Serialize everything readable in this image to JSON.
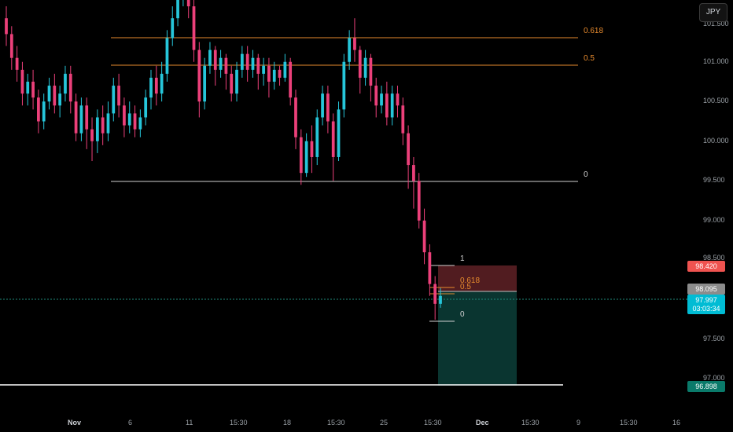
{
  "toolbar": {
    "currency_label": "JPY"
  },
  "colors": {
    "bull": "#26c6da",
    "bear": "#ec407a",
    "fib_orange": "#e68a2e",
    "fib_white": "#d0d0d0",
    "stop_zone": "#5a1f24",
    "target_zone": "#0b3b35",
    "red_tag": "#ef5350",
    "grey_tag": "#8c8c8c",
    "cyan_tag": "#00bcd4",
    "green_tag": "#0a7a6a"
  },
  "y_axis": {
    "ticks": [
      "101.000",
      "100.500",
      "100.000",
      "99.500",
      "99.000",
      "98.500",
      "97.500",
      "97.000"
    ],
    "partial_top_tick": "101.500"
  },
  "x_axis": {
    "ticks": [
      "Nov",
      "6",
      "11",
      "15:30",
      "18",
      "15:30",
      "25",
      "15:30",
      "Dec",
      "15:30",
      "9",
      "15:30",
      "16"
    ]
  },
  "fib_large": {
    "levels": [
      "0.618",
      "0.5",
      "0"
    ]
  },
  "fib_small": {
    "levels": [
      "1",
      "0.618",
      "0.5",
      "0"
    ]
  },
  "price_tags": {
    "stop": "98.420",
    "entry": "98.095",
    "current": "97.997",
    "countdown": "03:03:34",
    "target": "96.898"
  },
  "chart_data": {
    "type": "candlestick",
    "instrument_currency": "JPY",
    "y_range": [
      96.8,
      101.75
    ],
    "x_categories": [
      "Nov",
      "6",
      "11",
      "15:30",
      "18",
      "15:30",
      "25",
      "15:30",
      "Dec",
      "15:30",
      "9",
      "15:30",
      "16"
    ],
    "fib_retracement_1": {
      "levels": {
        "0.618": 101.2,
        "0.5": 100.95,
        "0": 99.48
      }
    },
    "fib_retracement_2": {
      "levels": {
        "1": 98.48,
        "0.618": 98.16,
        "0.5": 98.07,
        "0": 97.75
      }
    },
    "position": {
      "stop": 98.42,
      "entry": 98.095,
      "target": 96.898,
      "current": 97.997
    },
    "horizontal_line": 96.898,
    "candles": [
      [
        101.55,
        101.35,
        101.7,
        101.2
      ],
      [
        101.35,
        101.05,
        101.45,
        100.9
      ],
      [
        101.05,
        100.9,
        101.2,
        100.75
      ],
      [
        100.9,
        100.6,
        101.0,
        100.45
      ],
      [
        100.6,
        100.75,
        100.85,
        100.45
      ],
      [
        100.75,
        100.55,
        100.9,
        100.4
      ],
      [
        100.55,
        100.25,
        100.65,
        100.1
      ],
      [
        100.25,
        100.5,
        100.6,
        100.15
      ],
      [
        100.5,
        100.7,
        100.8,
        100.4
      ],
      [
        100.7,
        100.45,
        100.85,
        100.35
      ],
      [
        100.45,
        100.6,
        100.7,
        100.3
      ],
      [
        100.6,
        100.85,
        100.95,
        100.5
      ],
      [
        100.85,
        100.5,
        100.95,
        100.35
      ],
      [
        100.5,
        100.1,
        100.6,
        100.0
      ],
      [
        100.1,
        100.45,
        100.55,
        100.0
      ],
      [
        100.45,
        100.15,
        100.55,
        99.9
      ],
      [
        100.15,
        100.0,
        100.3,
        99.75
      ],
      [
        100.0,
        100.3,
        100.4,
        99.85
      ],
      [
        100.3,
        100.1,
        100.45,
        99.95
      ],
      [
        100.1,
        100.35,
        100.5,
        100.0
      ],
      [
        100.35,
        100.7,
        100.8,
        100.25
      ],
      [
        100.7,
        100.45,
        100.85,
        100.3
      ],
      [
        100.45,
        100.2,
        100.55,
        100.05
      ],
      [
        100.2,
        100.35,
        100.5,
        100.1
      ],
      [
        100.35,
        100.15,
        100.45,
        100.05
      ],
      [
        100.15,
        100.3,
        100.4,
        100.05
      ],
      [
        100.3,
        100.55,
        100.65,
        100.2
      ],
      [
        100.55,
        100.8,
        100.9,
        100.4
      ],
      [
        100.8,
        100.6,
        100.95,
        100.45
      ],
      [
        100.6,
        100.85,
        101.0,
        100.5
      ],
      [
        100.85,
        101.3,
        101.4,
        100.75
      ],
      [
        101.3,
        101.55,
        101.7,
        101.2
      ],
      [
        101.55,
        101.8,
        101.9,
        101.45
      ],
      [
        101.8,
        101.95,
        102.1,
        101.7
      ],
      [
        101.95,
        101.7,
        102.05,
        101.55
      ],
      [
        101.7,
        101.15,
        101.8,
        101.0
      ],
      [
        101.15,
        100.5,
        101.25,
        100.3
      ],
      [
        100.5,
        100.95,
        101.05,
        100.4
      ],
      [
        100.95,
        101.15,
        101.25,
        100.85
      ],
      [
        101.15,
        100.9,
        101.2,
        100.7
      ],
      [
        100.9,
        101.05,
        101.15,
        100.8
      ],
      [
        101.05,
        100.85,
        101.1,
        100.65
      ],
      [
        100.85,
        100.6,
        100.95,
        100.5
      ],
      [
        100.6,
        100.9,
        101.0,
        100.5
      ],
      [
        100.9,
        101.1,
        101.2,
        100.8
      ],
      [
        101.1,
        100.9,
        101.2,
        100.75
      ],
      [
        100.9,
        101.05,
        101.15,
        100.8
      ],
      [
        101.05,
        100.85,
        101.1,
        100.65
      ],
      [
        100.85,
        100.95,
        101.05,
        100.7
      ],
      [
        100.95,
        100.75,
        101.05,
        100.55
      ],
      [
        100.75,
        100.9,
        101.0,
        100.65
      ],
      [
        100.9,
        100.8,
        100.95,
        100.7
      ],
      [
        100.8,
        101.0,
        101.1,
        100.75
      ],
      [
        101.0,
        100.55,
        101.05,
        100.45
      ],
      [
        100.55,
        100.05,
        100.65,
        99.9
      ],
      [
        100.05,
        99.6,
        100.15,
        99.45
      ],
      [
        99.6,
        100.0,
        100.1,
        99.55
      ],
      [
        100.0,
        99.8,
        100.2,
        99.6
      ],
      [
        99.8,
        100.3,
        100.4,
        99.7
      ],
      [
        100.3,
        100.6,
        100.7,
        100.2
      ],
      [
        100.6,
        100.25,
        100.7,
        100.1
      ],
      [
        100.25,
        99.8,
        100.35,
        99.5
      ],
      [
        99.8,
        100.4,
        100.5,
        99.75
      ],
      [
        100.4,
        101.0,
        101.1,
        100.3
      ],
      [
        101.0,
        101.3,
        101.4,
        100.9
      ],
      [
        101.3,
        101.15,
        101.55,
        101.0
      ],
      [
        101.15,
        100.8,
        101.2,
        100.6
      ],
      [
        100.8,
        101.05,
        101.15,
        100.7
      ],
      [
        101.05,
        100.7,
        101.1,
        100.5
      ],
      [
        100.7,
        100.45,
        100.8,
        100.3
      ],
      [
        100.45,
        100.6,
        100.7,
        100.35
      ],
      [
        100.6,
        100.3,
        100.75,
        100.2
      ],
      [
        100.3,
        100.6,
        100.7,
        100.2
      ],
      [
        100.6,
        100.45,
        100.7,
        100.3
      ],
      [
        100.45,
        100.1,
        100.55,
        99.95
      ],
      [
        100.1,
        99.7,
        100.2,
        99.4
      ],
      [
        99.7,
        99.5,
        99.8,
        99.15
      ],
      [
        99.5,
        99.0,
        99.6,
        98.9
      ],
      [
        99.0,
        98.6,
        99.15,
        98.45
      ],
      [
        98.6,
        98.2,
        98.7,
        98.05
      ],
      [
        98.2,
        97.95,
        98.3,
        97.75
      ],
      [
        97.95,
        98.05,
        98.15,
        97.9
      ]
    ]
  }
}
